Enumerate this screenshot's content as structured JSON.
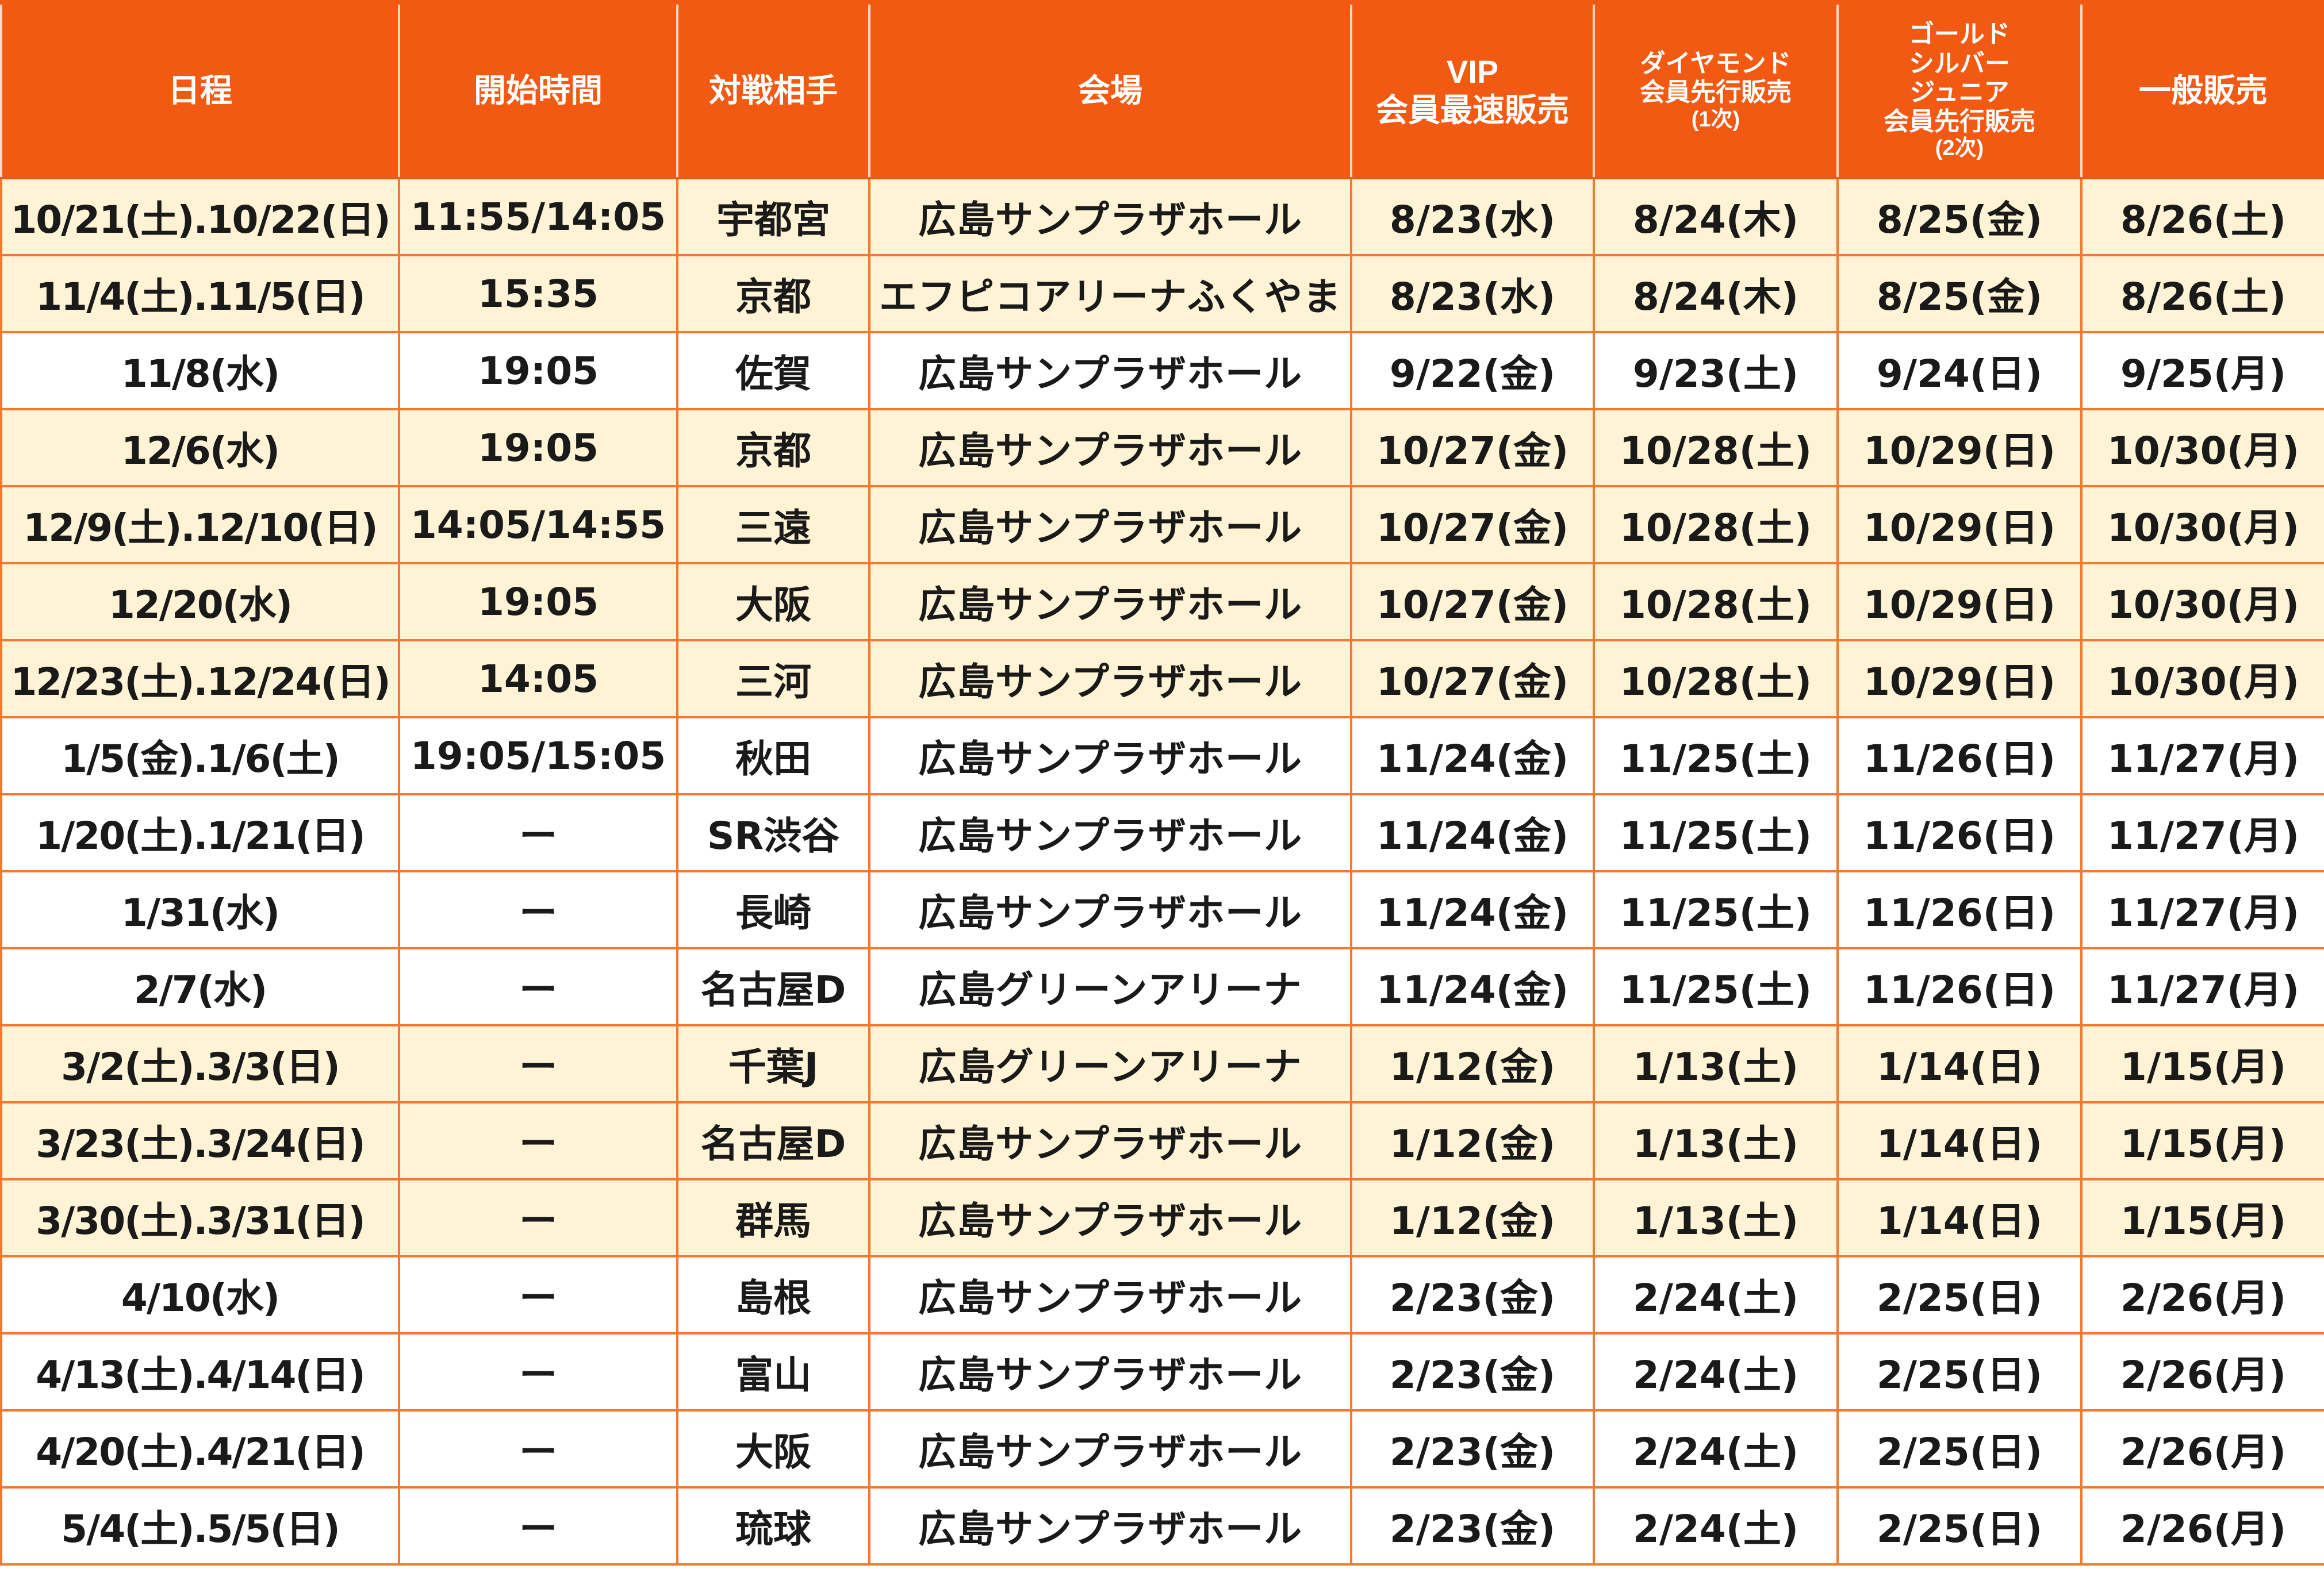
{
  "header": {
    "schedule": "日程",
    "start_time": "開始時間",
    "opponent": "対戦相手",
    "venue": "会場",
    "vip_line1": "VIP",
    "vip_line2": "会員最速販売",
    "diamond_line1": "ダイヤモンド",
    "diamond_line2": "会員先行販売",
    "diamond_line3": "(1次)",
    "gold_line1": "ゴールド",
    "gold_line2": "シルバー",
    "gold_line3": "ジュニア",
    "gold_line4": "会員先行販売",
    "gold_line5": "(2次)",
    "general": "一般販売"
  },
  "rows": [
    {
      "date": "10/21(土).10/22(日)",
      "time": "11:55/14:05",
      "opponent": "宇都宮",
      "venue": "広島サンプラザホール",
      "vip": "8/23(水)",
      "diamond": "8/24(木)",
      "gold": "8/25(金)",
      "general": "8/26(土)",
      "highlight": true
    },
    {
      "date": "11/4(土).11/5(日)",
      "time": "15:35",
      "opponent": "京都",
      "venue": "エフピコアリーナふくやま",
      "vip": "8/23(水)",
      "diamond": "8/24(木)",
      "gold": "8/25(金)",
      "general": "8/26(土)",
      "highlight": true
    },
    {
      "date": "11/8(水)",
      "time": "19:05",
      "opponent": "佐賀",
      "venue": "広島サンプラザホール",
      "vip": "9/22(金)",
      "diamond": "9/23(土)",
      "gold": "9/24(日)",
      "general": "9/25(月)",
      "highlight": false
    },
    {
      "date": "12/6(水)",
      "time": "19:05",
      "opponent": "京都",
      "venue": "広島サンプラザホール",
      "vip": "10/27(金)",
      "diamond": "10/28(土)",
      "gold": "10/29(日)",
      "general": "10/30(月)",
      "highlight": true
    },
    {
      "date": "12/9(土).12/10(日)",
      "time": "14:05/14:55",
      "opponent": "三遠",
      "venue": "広島サンプラザホール",
      "vip": "10/27(金)",
      "diamond": "10/28(土)",
      "gold": "10/29(日)",
      "general": "10/30(月)",
      "highlight": true
    },
    {
      "date": "12/20(水)",
      "time": "19:05",
      "opponent": "大阪",
      "venue": "広島サンプラザホール",
      "vip": "10/27(金)",
      "diamond": "10/28(土)",
      "gold": "10/29(日)",
      "general": "10/30(月)",
      "highlight": true
    },
    {
      "date": "12/23(土).12/24(日)",
      "time": "14:05",
      "opponent": "三河",
      "venue": "広島サンプラザホール",
      "vip": "10/27(金)",
      "diamond": "10/28(土)",
      "gold": "10/29(日)",
      "general": "10/30(月)",
      "highlight": true
    },
    {
      "date": "1/5(金).1/6(土)",
      "time": "19:05/15:05",
      "opponent": "秋田",
      "venue": "広島サンプラザホール",
      "vip": "11/24(金)",
      "diamond": "11/25(土)",
      "gold": "11/26(日)",
      "general": "11/27(月)",
      "highlight": false
    },
    {
      "date": "1/20(土).1/21(日)",
      "time": "ー",
      "opponent": "SR渋谷",
      "venue": "広島サンプラザホール",
      "vip": "11/24(金)",
      "diamond": "11/25(土)",
      "gold": "11/26(日)",
      "general": "11/27(月)",
      "highlight": false
    },
    {
      "date": "1/31(水)",
      "time": "ー",
      "opponent": "長崎",
      "venue": "広島サンプラザホール",
      "vip": "11/24(金)",
      "diamond": "11/25(土)",
      "gold": "11/26(日)",
      "general": "11/27(月)",
      "highlight": false
    },
    {
      "date": "2/7(水)",
      "time": "ー",
      "opponent": "名古屋D",
      "venue": "広島グリーンアリーナ",
      "vip": "11/24(金)",
      "diamond": "11/25(土)",
      "gold": "11/26(日)",
      "general": "11/27(月)",
      "highlight": false
    },
    {
      "date": "3/2(土).3/3(日)",
      "time": "ー",
      "opponent": "千葉J",
      "venue": "広島グリーンアリーナ",
      "vip": "1/12(金)",
      "diamond": "1/13(土)",
      "gold": "1/14(日)",
      "general": "1/15(月)",
      "highlight": true
    },
    {
      "date": "3/23(土).3/24(日)",
      "time": "ー",
      "opponent": "名古屋D",
      "venue": "広島サンプラザホール",
      "vip": "1/12(金)",
      "diamond": "1/13(土)",
      "gold": "1/14(日)",
      "general": "1/15(月)",
      "highlight": true
    },
    {
      "date": "3/30(土).3/31(日)",
      "time": "ー",
      "opponent": "群馬",
      "venue": "広島サンプラザホール",
      "vip": "1/12(金)",
      "diamond": "1/13(土)",
      "gold": "1/14(日)",
      "general": "1/15(月)",
      "highlight": true
    },
    {
      "date": "4/10(水)",
      "time": "ー",
      "opponent": "島根",
      "venue": "広島サンプラザホール",
      "vip": "2/23(金)",
      "diamond": "2/24(土)",
      "gold": "2/25(日)",
      "general": "2/26(月)",
      "highlight": false
    },
    {
      "date": "4/13(土).4/14(日)",
      "time": "ー",
      "opponent": "富山",
      "venue": "広島サンプラザホール",
      "vip": "2/23(金)",
      "diamond": "2/24(土)",
      "gold": "2/25(日)",
      "general": "2/26(月)",
      "highlight": false
    },
    {
      "date": "4/20(土).4/21(日)",
      "time": "ー",
      "opponent": "大阪",
      "venue": "広島サンプラザホール",
      "vip": "2/23(金)",
      "diamond": "2/24(土)",
      "gold": "2/25(日)",
      "general": "2/26(月)",
      "highlight": false
    },
    {
      "date": "5/4(土).5/5(日)",
      "time": "ー",
      "opponent": "琉球",
      "venue": "広島サンプラザホール",
      "vip": "2/23(金)",
      "diamond": "2/24(土)",
      "gold": "2/25(日)",
      "general": "2/26(月)",
      "highlight": false
    }
  ],
  "colors": {
    "header_bg": "#f25a14",
    "header_text": "#ffffff",
    "highlight_row": "#fff3d6",
    "plain_row": "#ffffff",
    "grid_line": "#f07a32"
  }
}
